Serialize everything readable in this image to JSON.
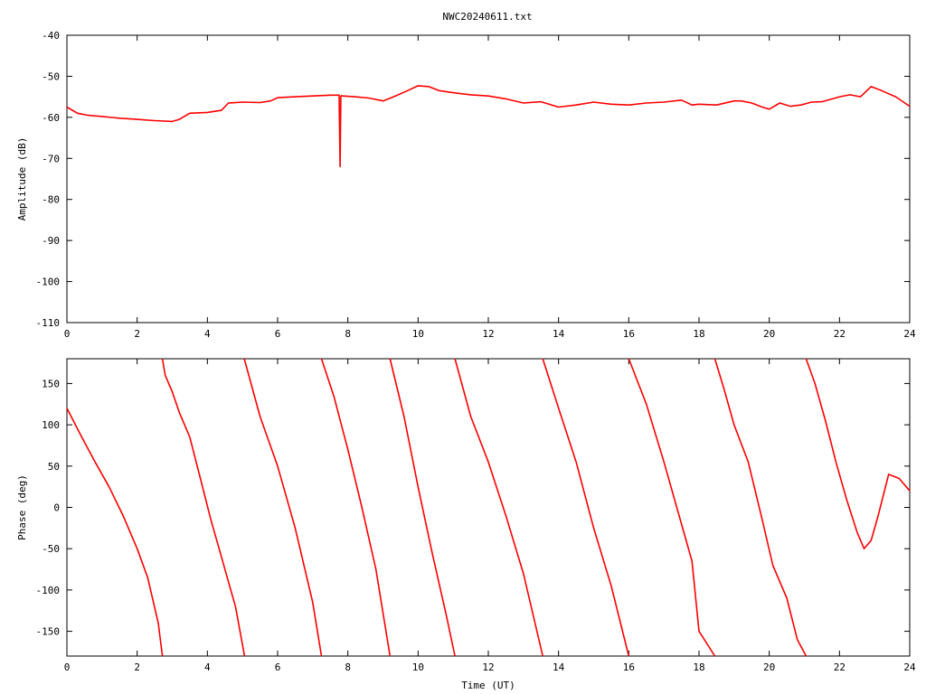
{
  "title": "NWC20240611.txt",
  "chart_data": [
    {
      "type": "line",
      "xlabel": "",
      "ylabel": "Amplitude (dB)",
      "xlim": [
        0,
        24
      ],
      "ylim": [
        -110,
        -40
      ],
      "xticks": [
        "0",
        "2",
        "4",
        "6",
        "8",
        "10",
        "12",
        "14",
        "16",
        "18",
        "20",
        "22",
        "24"
      ],
      "yticks": [
        "-40",
        "-50",
        "-60",
        "-70",
        "-80",
        "-90",
        "-100",
        "-110"
      ],
      "grid": false,
      "color": "#ff0000",
      "series": [
        {
          "x": [
            0,
            0.3,
            0.6,
            1.0,
            1.5,
            2.0,
            2.5,
            3.0,
            3.2,
            3.5,
            4.0,
            4.4,
            4.6,
            5.0,
            5.5,
            5.8,
            6.0,
            6.5,
            7.0,
            7.5,
            7.75,
            7.78,
            7.8,
            7.82,
            7.85,
            8.2,
            8.6,
            9.0,
            9.3,
            9.7,
            10.0,
            10.3,
            10.6,
            11.0,
            11.5,
            12.0,
            12.5,
            13.0,
            13.5,
            14.0,
            14.5,
            15.0,
            15.5,
            16.0,
            16.5,
            17.0,
            17.5,
            17.8,
            18.0,
            18.5,
            19.0,
            19.2,
            19.5,
            19.8,
            20.0,
            20.3,
            20.6,
            20.9,
            21.2,
            21.5,
            21.8,
            22.0,
            22.3,
            22.6,
            22.9,
            23.2,
            23.6,
            24.0
          ],
          "y": [
            -57.5,
            -59,
            -59.5,
            -59.8,
            -60.2,
            -60.5,
            -60.8,
            -61,
            -60.5,
            -59,
            -58.8,
            -58.3,
            -56.5,
            -56.3,
            -56.4,
            -56,
            -55.2,
            -55,
            -54.8,
            -54.6,
            -54.6,
            -72,
            -55,
            -54.7,
            -54.8,
            -55,
            -55.3,
            -56,
            -55,
            -53.5,
            -52.3,
            -52.5,
            -53.5,
            -54,
            -54.5,
            -54.8,
            -55.5,
            -56.5,
            -56.2,
            -57.5,
            -57,
            -56.3,
            -56.8,
            -57,
            -56.5,
            -56.3,
            -55.8,
            -57,
            -56.8,
            -57,
            -56,
            -56,
            -56.5,
            -57.5,
            -58,
            -56.5,
            -57.3,
            -57,
            -56.3,
            -56.2,
            -55.5,
            -55,
            -54.5,
            -55,
            -52.5,
            -53.5,
            -55,
            -57.3
          ]
        }
      ]
    },
    {
      "type": "line",
      "xlabel": "Time (UT)",
      "ylabel": "Phase (deg)",
      "xlim": [
        0,
        24
      ],
      "ylim": [
        -180,
        180
      ],
      "xticks": [
        "0",
        "2",
        "4",
        "6",
        "8",
        "10",
        "12",
        "14",
        "16",
        "18",
        "20",
        "22",
        "24"
      ],
      "yticks": [
        "150",
        "100",
        "50",
        "0",
        "-50",
        "-100",
        "-150"
      ],
      "grid": false,
      "color": "#ff0000",
      "series": [
        {
          "x": [
            0,
            0.4,
            0.8,
            1.2,
            1.6,
            2.0,
            2.3,
            2.6,
            2.72,
            2.72,
            2.8,
            3.0,
            3.2,
            3.5,
            3.8,
            4.1,
            4.4,
            4.6,
            4.8,
            5.05,
            5.05,
            5.5,
            6.0,
            6.5,
            7.0,
            7.25,
            7.25,
            7.6,
            8.0,
            8.4,
            8.8,
            9.2,
            9.2,
            9.6,
            10.0,
            10.4,
            10.8,
            11.05,
            11.05,
            11.5,
            12.0,
            12.5,
            13.0,
            13.55,
            13.55,
            14.0,
            14.5,
            15.0,
            15.5,
            16.0,
            16.0,
            16.5,
            17.0,
            17.4,
            17.8,
            18.0,
            18.45,
            18.45,
            18.7,
            19.0,
            19.4,
            19.8,
            20.1,
            20.5,
            20.8,
            21.05,
            21.05,
            21.3,
            21.6,
            21.9,
            22.2,
            22.5,
            22.7,
            22.9,
            23.1,
            23.4,
            23.7,
            24.0
          ],
          "y": [
            120,
            87,
            55,
            25,
            -10,
            -50,
            -85,
            -140,
            -180,
            180,
            160,
            140,
            115,
            85,
            35,
            -15,
            -60,
            -90,
            -120,
            -178,
            180,
            110,
            50,
            -25,
            -115,
            -180,
            180,
            135,
            70,
            0,
            -75,
            -180,
            180,
            110,
            25,
            -55,
            -130,
            -180,
            180,
            110,
            55,
            -10,
            -80,
            -180,
            180,
            120,
            55,
            -25,
            -95,
            -180,
            180,
            125,
            55,
            -5,
            -65,
            -150,
            -180,
            180,
            145,
            100,
            55,
            -15,
            -70,
            -110,
            -160,
            -180,
            180,
            150,
            105,
            55,
            10,
            -30,
            -50,
            -40,
            -10,
            40,
            35,
            20
          ]
        }
      ]
    }
  ]
}
